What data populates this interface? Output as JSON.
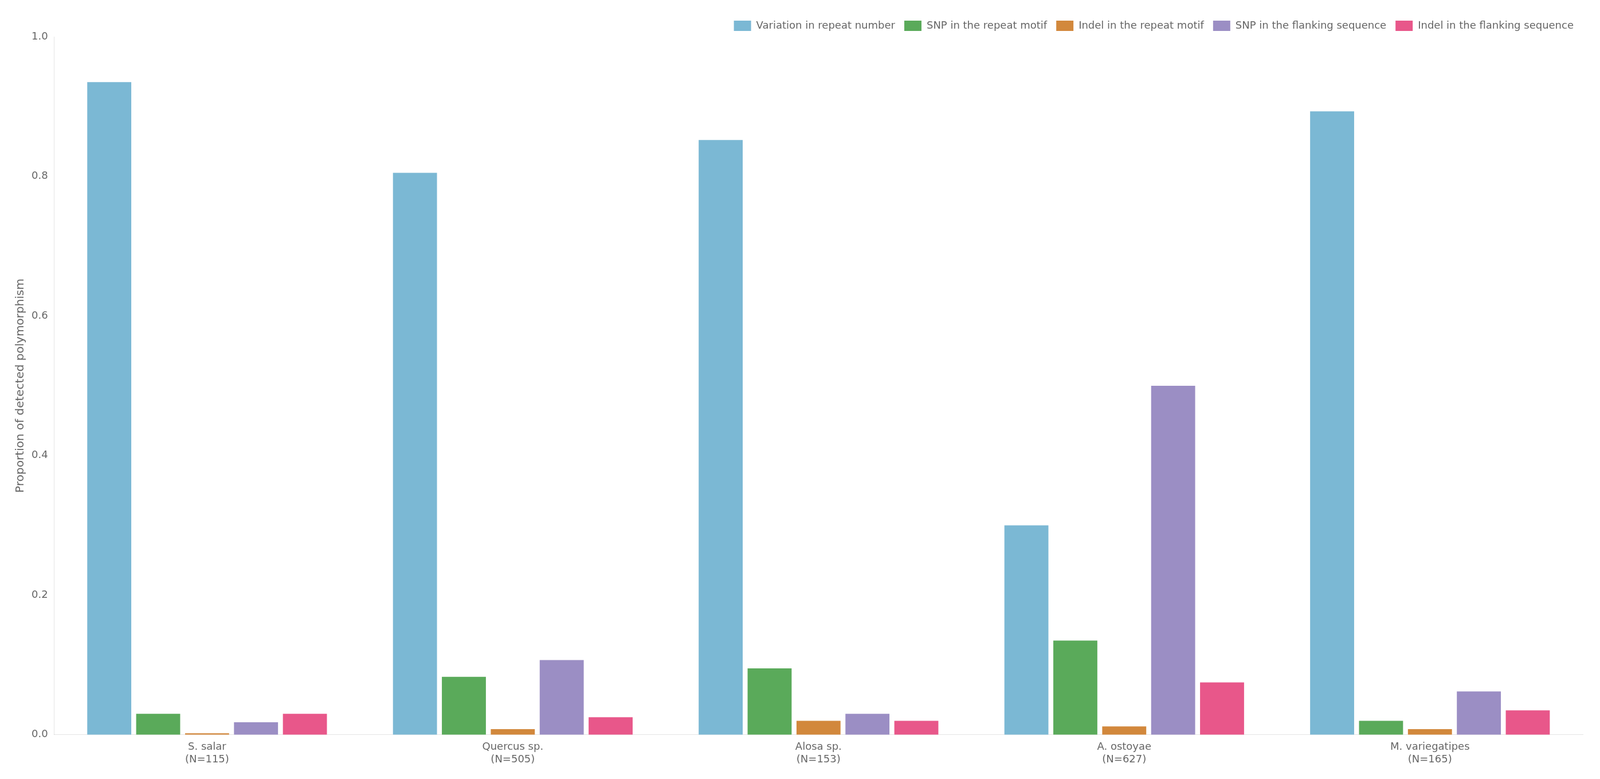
{
  "chart_data": {
    "type": "bar",
    "y_label": "Proportion of detected polymorphism",
    "categories": [
      "S. salar\n(N=115)",
      "Quercus sp.\n(N=505)",
      "Alosa sp.\n(N=153)",
      "A. ostoyae\n(N=627)",
      "M. variegatipes\n(N=165)"
    ],
    "series": [
      {
        "name": "Variation in repeat number",
        "color": "#7bb8d4",
        "values": [
          0.935,
          0.805,
          0.852,
          0.3,
          0.893
        ]
      },
      {
        "name": "SNP in the repeat motif",
        "color": "#5aaa5a",
        "values": [
          0.03,
          0.083,
          0.095,
          0.135,
          0.02
        ]
      },
      {
        "name": "Indel in the repeat motif",
        "color": "#d2883c",
        "values": [
          0.002,
          0.008,
          0.02,
          0.012,
          0.008
        ]
      },
      {
        "name": "SNP in the flanking sequence",
        "color": "#9b8ec4",
        "values": [
          0.018,
          0.107,
          0.03,
          0.5,
          0.062
        ]
      },
      {
        "name": "Indel in the flanking sequence",
        "color": "#e8578a",
        "values": [
          0.03,
          0.025,
          0.02,
          0.075,
          0.035
        ]
      }
    ],
    "ylim": [
      0.0,
      1.0
    ],
    "yticks": [
      {
        "value": 0.0,
        "label": "0.0"
      },
      0.2,
      0.4,
      0.6,
      0.8,
      {
        "value": 1.0,
        "label": "1.0"
      }
    ],
    "grid": false,
    "legend": "upper right"
  }
}
